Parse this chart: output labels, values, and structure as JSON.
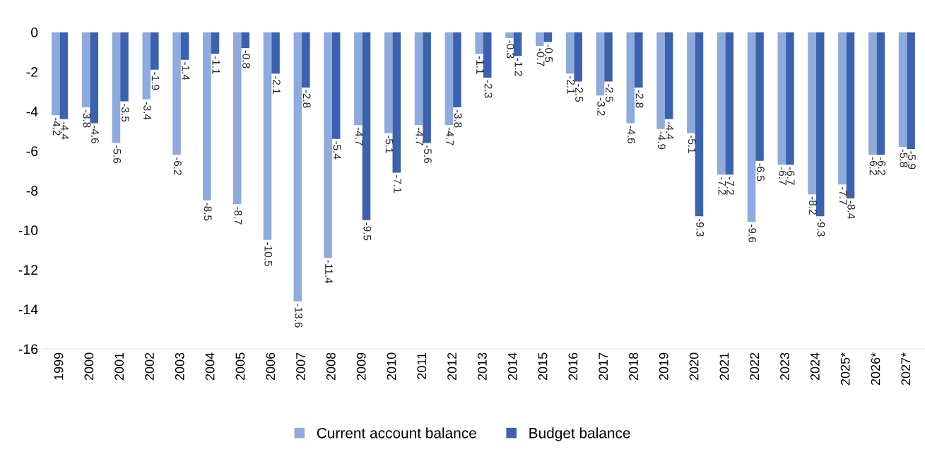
{
  "chart_data": {
    "type": "bar",
    "categories": [
      "1999",
      "2000",
      "2001",
      "2002",
      "2003",
      "2004",
      "2005",
      "2006",
      "2007",
      "2008",
      "2009",
      "2010",
      "2011",
      "2012",
      "2013",
      "2014",
      "2015",
      "2016",
      "2017",
      "2018",
      "2019",
      "2020",
      "2021",
      "2022",
      "2023",
      "2024",
      "2025*",
      "2026*",
      "2027*"
    ],
    "series": [
      {
        "name": "Current account balance",
        "color": "#8faadc",
        "values": [
          -4.2,
          -3.8,
          -5.6,
          -3.4,
          -6.2,
          -8.5,
          -8.7,
          -10.5,
          -13.6,
          -11.4,
          -4.7,
          -5.1,
          -4.7,
          -4.7,
          -1.1,
          -0.3,
          -0.7,
          -2.1,
          -3.2,
          -4.6,
          -4.9,
          -5.1,
          -7.2,
          -9.6,
          -6.7,
          -8.2,
          -7.7,
          -6.2,
          -5.8
        ]
      },
      {
        "name": "Budget balance",
        "color": "#3a62b0",
        "values": [
          -4.4,
          -4.6,
          -3.5,
          -1.9,
          -1.4,
          -1.1,
          -0.8,
          -2.1,
          -2.8,
          -5.4,
          -9.5,
          -7.1,
          -5.6,
          -3.8,
          -2.3,
          -1.2,
          -0.5,
          -2.5,
          -2.5,
          -2.8,
          -4.4,
          -9.3,
          -7.2,
          -6.5,
          -6.7,
          -9.3,
          -8.4,
          -6.2,
          -5.9
        ]
      }
    ],
    "ylim": [
      -16,
      0
    ],
    "yticks": [
      -16,
      -14,
      -12,
      -10,
      -8,
      -6,
      -4,
      -2,
      0
    ],
    "data_labels": true,
    "legend": "bottom",
    "grid": false
  }
}
